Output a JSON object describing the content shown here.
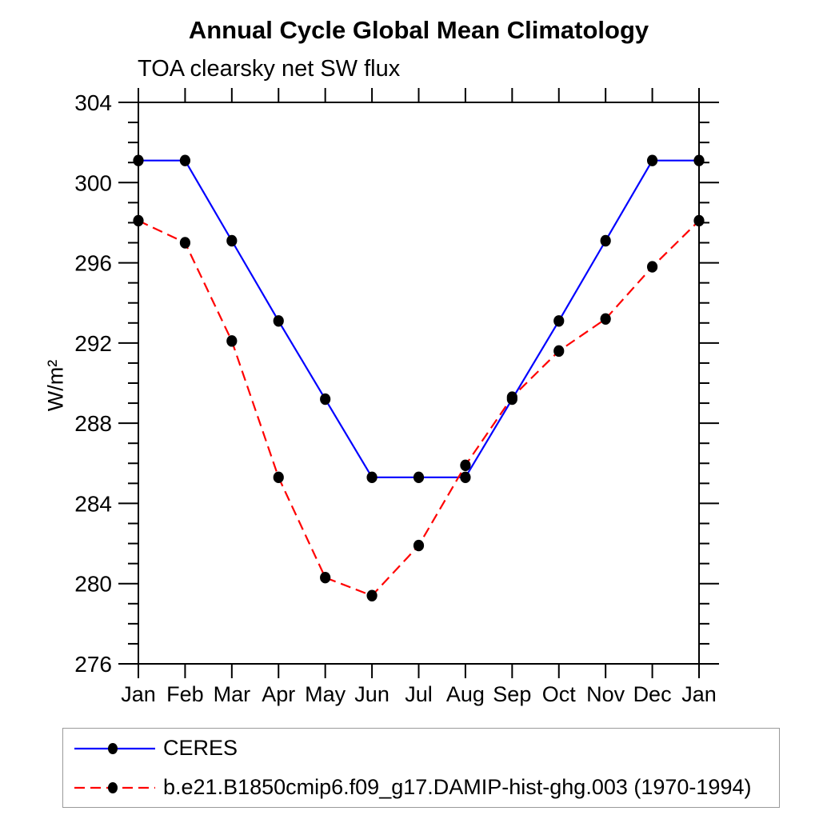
{
  "title": "Annual Cycle Global Mean Climatology",
  "subtitle": "TOA clearsky net SW flux",
  "ylabel": "W/m²",
  "colors": {
    "ceres_line": "#0000ff",
    "model_line": "#ff0000",
    "marker": "#000000",
    "axis": "#000000",
    "legend_border": "#9a9a9a",
    "background": "#ffffff"
  },
  "chart_data": {
    "type": "line",
    "categories": [
      "Jan",
      "Feb",
      "Mar",
      "Apr",
      "May",
      "Jun",
      "Jul",
      "Aug",
      "Sep",
      "Oct",
      "Nov",
      "Dec",
      "Jan"
    ],
    "series": [
      {
        "name": "CERES",
        "color": "#0000ff",
        "line_style": "solid",
        "marker": "filled-circle",
        "marker_color": "#000000",
        "values": [
          301.1,
          301.1,
          297.1,
          293.1,
          289.2,
          285.3,
          285.3,
          285.3,
          289.2,
          293.1,
          297.1,
          301.1,
          301.1
        ]
      },
      {
        "name": "b.e21.B1850cmip6.f09_g17.DAMIP-hist-ghg.003 (1970-1994)",
        "color": "#ff0000",
        "line_style": "dashed",
        "marker": "filled-circle",
        "marker_color": "#000000",
        "values": [
          298.1,
          297.0,
          292.1,
          285.3,
          280.3,
          279.4,
          281.9,
          285.9,
          289.3,
          291.6,
          293.2,
          295.8,
          298.1
        ]
      }
    ],
    "title": "Annual Cycle Global Mean Climatology",
    "subtitle": "TOA clearsky net SW flux",
    "xlabel": "",
    "ylabel": "W/m²",
    "ylim": [
      276,
      304
    ],
    "ytick_major": [
      276,
      280,
      284,
      288,
      292,
      296,
      300,
      304
    ],
    "ytick_minor_step": 1,
    "grid": false,
    "legend_position": "bottom"
  }
}
